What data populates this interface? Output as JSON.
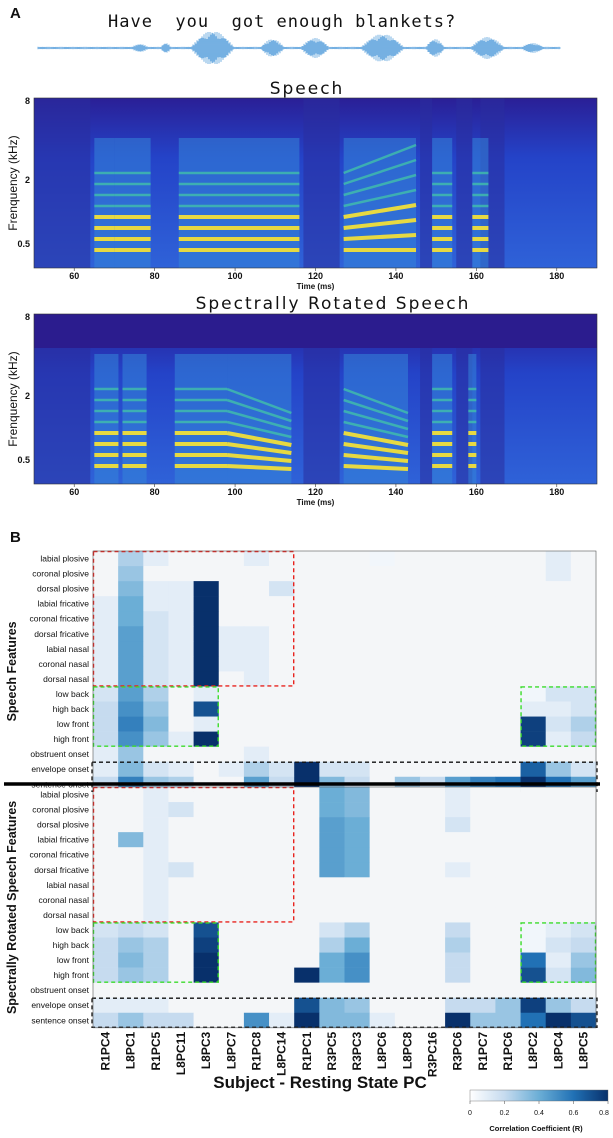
{
  "panel_a": {
    "letter": "A",
    "sentence": "Have  you  got enough blankets?",
    "speech": {
      "title": "Speech",
      "ylabel": "Frenquency (kHz)",
      "yticks": [
        "8",
        "2",
        "0.5"
      ],
      "xticks": [
        "60",
        "80",
        "100",
        "120",
        "140",
        "160",
        "180"
      ],
      "xlabel": "Time (ms)"
    },
    "rotated": {
      "title": "Spectrally Rotated Speech",
      "ylabel": "Frenquency (kHz)",
      "yticks": [
        "8",
        "2",
        "0.5"
      ],
      "xticks": [
        "60",
        "80",
        "100",
        "120",
        "140",
        "160",
        "180"
      ],
      "xlabel": "Time (ms)"
    }
  },
  "panel_b": {
    "letter": "B",
    "group_labels": [
      "Speech Features",
      "Spectrally Rotated Speech Features"
    ],
    "x_title": "Subject - Resting State PC",
    "colorbar": {
      "title": "Correlation Coefficient (R)",
      "ticks": [
        "0",
        "0.2",
        "0.4",
        "0.6",
        "0.8"
      ]
    }
  },
  "chart_data": {
    "type": "heatmap",
    "title": "",
    "xlabel": "Subject - Resting State PC",
    "ylabel": "",
    "clim": [
      0,
      0.8
    ],
    "columns": [
      "R1PC4",
      "L8PC1",
      "R1PC5",
      "L8PC11",
      "L8PC3",
      "L8PC7",
      "R1PC8",
      "L8PC14",
      "R1PC1",
      "R3PC5",
      "R3PC3",
      "L8PC6",
      "L8PC8",
      "R3PC16",
      "R3PC6",
      "R1PC7",
      "R1PC6",
      "L8PC2",
      "L8PC4",
      "L8PC5"
    ],
    "rows": [
      "labial plosive",
      "coronal plosive",
      "dorsal plosive",
      "labial fricative",
      "coronal fricative",
      "dorsal fricative",
      "labial nasal",
      "coronal nasal",
      "dorsal nasal",
      "low back",
      "high back",
      "low front",
      "high front",
      "obstruent onset",
      "envelope onset",
      "sentence onset"
    ],
    "speech_values": [
      [
        0,
        0.25,
        0.1,
        0,
        0,
        0,
        0.1,
        0,
        0,
        0,
        0,
        0.05,
        0,
        0,
        0,
        0,
        0,
        0,
        0.1,
        0
      ],
      [
        0,
        0.3,
        0,
        0,
        0,
        0,
        0,
        0,
        0,
        0,
        0,
        0,
        0,
        0,
        0,
        0,
        0,
        0,
        0.1,
        0
      ],
      [
        0,
        0.35,
        0.1,
        0.1,
        0.8,
        0,
        0,
        0.15,
        0,
        0,
        0,
        0,
        0,
        0,
        0,
        0,
        0,
        0,
        0,
        0
      ],
      [
        0.1,
        0.4,
        0.1,
        0.1,
        0.8,
        0,
        0,
        0,
        0,
        0,
        0,
        0,
        0,
        0,
        0,
        0,
        0,
        0,
        0,
        0
      ],
      [
        0.1,
        0.4,
        0.15,
        0.1,
        0.8,
        0,
        0,
        0,
        0,
        0,
        0,
        0,
        0,
        0,
        0,
        0,
        0,
        0,
        0,
        0
      ],
      [
        0.1,
        0.45,
        0.15,
        0.1,
        0.8,
        0.1,
        0.1,
        0,
        0,
        0,
        0,
        0,
        0,
        0,
        0,
        0,
        0,
        0,
        0,
        0
      ],
      [
        0.1,
        0.45,
        0.15,
        0.1,
        0.8,
        0.1,
        0.1,
        0,
        0,
        0,
        0,
        0,
        0,
        0,
        0,
        0,
        0,
        0,
        0,
        0
      ],
      [
        0.1,
        0.45,
        0.15,
        0.1,
        0.8,
        0.1,
        0.1,
        0,
        0,
        0,
        0,
        0,
        0,
        0,
        0,
        0,
        0,
        0,
        0,
        0
      ],
      [
        0.1,
        0.45,
        0.15,
        0.1,
        0.8,
        0,
        0.1,
        0,
        0,
        0,
        0,
        0,
        0,
        0,
        0,
        0,
        0,
        0,
        0,
        0
      ],
      [
        0.15,
        0.45,
        0.25,
        0,
        0.1,
        0,
        0,
        0,
        0,
        0,
        0,
        0,
        0,
        0,
        0,
        0,
        0,
        0.05,
        0.15,
        0.15
      ],
      [
        0.2,
        0.5,
        0.3,
        0,
        0.7,
        0,
        0,
        0,
        0,
        0,
        0,
        0,
        0,
        0,
        0,
        0,
        0,
        0.1,
        0.1,
        0.15
      ],
      [
        0.2,
        0.55,
        0.35,
        0,
        0.1,
        0,
        0,
        0,
        0,
        0,
        0,
        0,
        0,
        0,
        0,
        0,
        0,
        0.75,
        0.15,
        0.25
      ],
      [
        0.2,
        0.5,
        0.3,
        0.1,
        0.8,
        0,
        0,
        0,
        0,
        0,
        0,
        0,
        0,
        0,
        0,
        0,
        0,
        0.75,
        0.1,
        0.2
      ],
      [
        0.1,
        0.3,
        0,
        0,
        0,
        0,
        0.1,
        0,
        0,
        0,
        0,
        0,
        0,
        0,
        0,
        0,
        0,
        0,
        0,
        0
      ],
      [
        0.1,
        0.35,
        0.15,
        0.1,
        0,
        0.1,
        0.25,
        0.15,
        0.8,
        0.15,
        0.15,
        0,
        0,
        0,
        0,
        0,
        0,
        0.65,
        0.3,
        0.15
      ],
      [
        0.2,
        0.55,
        0.3,
        0.25,
        0,
        0,
        0.45,
        0.2,
        0.8,
        0.35,
        0.2,
        0,
        0.3,
        0.2,
        0.45,
        0.55,
        0.6,
        0.8,
        0.6,
        0.45
      ]
    ],
    "rotated_values": [
      [
        0,
        0,
        0.1,
        0,
        0,
        0,
        0,
        0,
        0,
        0.4,
        0.35,
        0,
        0,
        0,
        0.1,
        0,
        0,
        0,
        0,
        0
      ],
      [
        0,
        0,
        0.1,
        0.15,
        0,
        0,
        0,
        0,
        0,
        0.4,
        0.35,
        0,
        0,
        0,
        0.1,
        0,
        0,
        0,
        0,
        0
      ],
      [
        0,
        0,
        0.1,
        0,
        0,
        0,
        0,
        0,
        0,
        0.45,
        0.4,
        0,
        0,
        0,
        0.15,
        0,
        0,
        0,
        0,
        0
      ],
      [
        0,
        0.35,
        0.1,
        0,
        0,
        0,
        0,
        0,
        0,
        0.45,
        0.4,
        0,
        0,
        0,
        0,
        0,
        0,
        0,
        0,
        0
      ],
      [
        0,
        0,
        0.1,
        0,
        0,
        0,
        0,
        0,
        0,
        0.45,
        0.4,
        0,
        0,
        0,
        0,
        0,
        0,
        0,
        0,
        0
      ],
      [
        0,
        0,
        0.1,
        0.15,
        0,
        0,
        0,
        0,
        0,
        0.45,
        0.4,
        0,
        0,
        0,
        0.1,
        0,
        0,
        0,
        0,
        0
      ],
      [
        0,
        0,
        0.1,
        0,
        0,
        0,
        0,
        0,
        0,
        0,
        0,
        0,
        0,
        0,
        0,
        0,
        0,
        0,
        0,
        0
      ],
      [
        0,
        0,
        0.1,
        0,
        0,
        0,
        0,
        0,
        0,
        0,
        0,
        0,
        0,
        0,
        0,
        0,
        0,
        0,
        0,
        0
      ],
      [
        0,
        0,
        0.1,
        0,
        0,
        0,
        0,
        0,
        0,
        0,
        0,
        0,
        0,
        0,
        0,
        0,
        0,
        0,
        0,
        0
      ],
      [
        0.15,
        0.2,
        0.15,
        0,
        0.7,
        0,
        0,
        0,
        0,
        0.15,
        0.25,
        0,
        0,
        0,
        0.2,
        0,
        0,
        0.05,
        0.1,
        0.15
      ],
      [
        0.2,
        0.3,
        0.25,
        0,
        0.75,
        0,
        0,
        0,
        0,
        0.25,
        0.4,
        0,
        0,
        0,
        0.25,
        0,
        0,
        0.05,
        0.15,
        0.2
      ],
      [
        0.2,
        0.35,
        0.25,
        0,
        0.8,
        0,
        0,
        0,
        0,
        0.4,
        0.5,
        0,
        0,
        0,
        0.2,
        0,
        0,
        0.6,
        0.1,
        0.3
      ],
      [
        0.2,
        0.3,
        0.25,
        0,
        0.8,
        0,
        0,
        0,
        0.8,
        0.4,
        0.5,
        0,
        0,
        0,
        0.2,
        0,
        0,
        0.7,
        0.15,
        0.35
      ],
      [
        0,
        0,
        0,
        0,
        0,
        0,
        0,
        0,
        0,
        0,
        0,
        0,
        0,
        0,
        0,
        0,
        0,
        0,
        0,
        0
      ],
      [
        0.1,
        0.1,
        0.1,
        0,
        0,
        0,
        0,
        0,
        0.7,
        0.35,
        0.3,
        0,
        0,
        0,
        0.2,
        0.2,
        0.3,
        0.75,
        0.3,
        0.2
      ],
      [
        0.2,
        0.3,
        0.2,
        0.2,
        0,
        0,
        0.5,
        0.1,
        0.8,
        0.35,
        0.35,
        0.1,
        0,
        0,
        0.85,
        0.3,
        0.3,
        0.6,
        0.8,
        0.7
      ]
    ]
  }
}
